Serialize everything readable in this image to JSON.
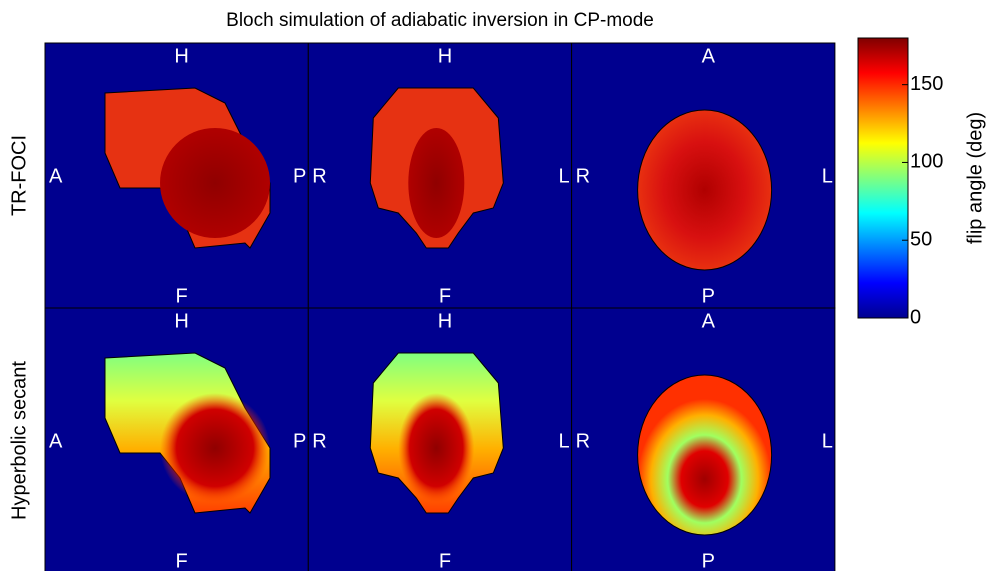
{
  "chart_data": {
    "type": "image-grid",
    "title": "Bloch simulation of adiabatic inversion in CP-mode",
    "rows": [
      {
        "label": "TR-FOCI",
        "panels": [
          {
            "top": "H",
            "bottom": "F",
            "left": "A",
            "right": "P"
          },
          {
            "top": "H",
            "bottom": "F",
            "left": "R",
            "right": "L"
          },
          {
            "top": "A",
            "bottom": "P",
            "left": "R",
            "right": "L"
          }
        ]
      },
      {
        "label": "Hyperbolic secant",
        "panels": [
          {
            "top": "H",
            "bottom": "F",
            "left": "A",
            "right": "P"
          },
          {
            "top": "H",
            "bottom": "F",
            "left": "R",
            "right": "L"
          },
          {
            "top": "A",
            "bottom": "P",
            "left": "R",
            "right": "L"
          }
        ]
      }
    ],
    "colorbar": {
      "label": "flip angle (deg)",
      "clim": [
        0,
        180
      ],
      "ticks": [
        0,
        50,
        100,
        150
      ],
      "colormap": "jet"
    }
  }
}
